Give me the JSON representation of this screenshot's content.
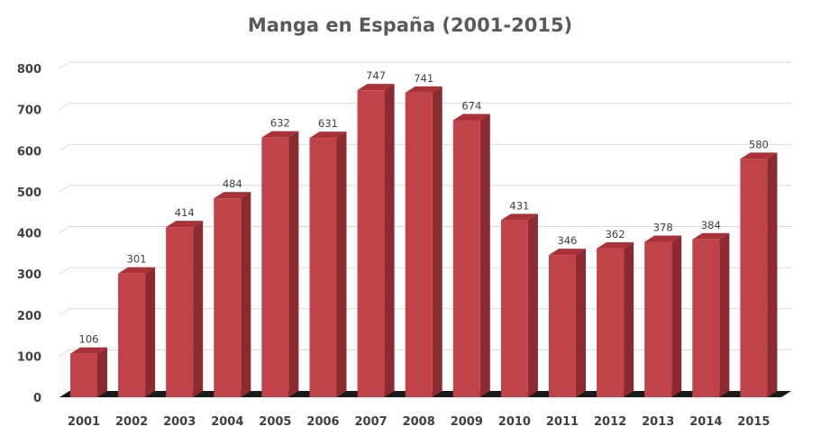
{
  "chart_data": {
    "type": "bar",
    "title": "Manga en España (2001-2015)",
    "xlabel": "",
    "ylabel": "",
    "categories": [
      "2001",
      "2002",
      "2003",
      "2004",
      "2005",
      "2006",
      "2007",
      "2008",
      "2009",
      "2010",
      "2011",
      "2012",
      "2013",
      "2014",
      "2015"
    ],
    "values": [
      106,
      301,
      414,
      484,
      632,
      631,
      747,
      741,
      674,
      431,
      346,
      362,
      378,
      384,
      580
    ],
    "ylim": [
      0,
      800
    ],
    "yticks": [
      "0",
      "100",
      "200",
      "300",
      "400",
      "500",
      "600",
      "700",
      "800"
    ],
    "grid": true,
    "legend": "none",
    "style": "3d-column",
    "colors": {
      "bar_front": "#c0434a",
      "bar_side": "#8b2a30",
      "bar_top": "#a83238",
      "floor": "#1a1a1a"
    }
  }
}
